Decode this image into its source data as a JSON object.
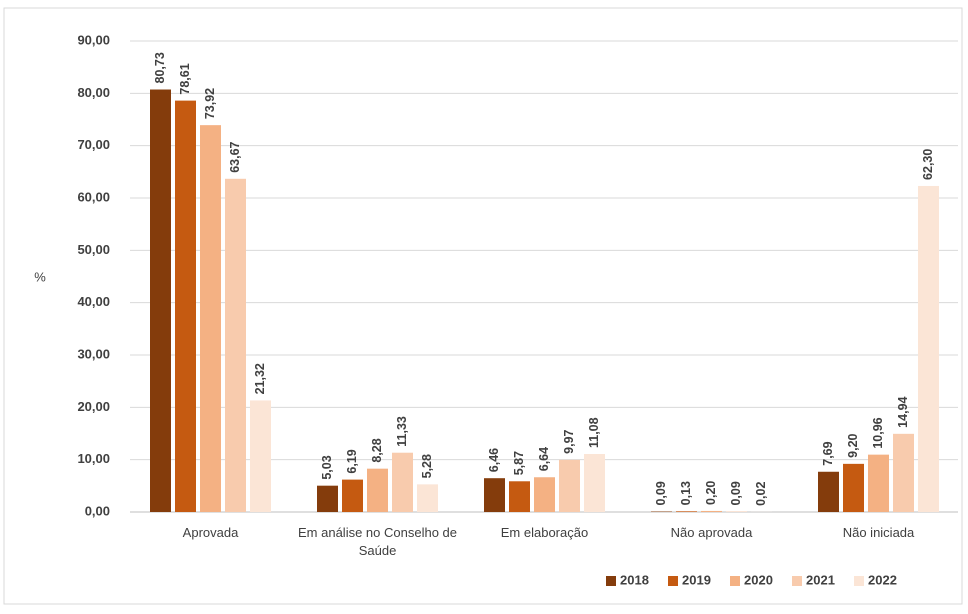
{
  "chart_data": {
    "type": "bar",
    "y_label": "%",
    "categories": [
      "Aprovada",
      "Em análise no Conselho de Saúde",
      "Em elaboração",
      "Não aprovada",
      "Não iniciada"
    ],
    "series": [
      {
        "name": "2018",
        "color": "#843c0c",
        "values": [
          80.73,
          5.03,
          6.46,
          0.09,
          7.69
        ],
        "value_labels": [
          "80,73",
          "5,03",
          "6,46",
          "0,09",
          "7,69"
        ]
      },
      {
        "name": "2019",
        "color": "#c55a11",
        "values": [
          78.61,
          6.19,
          5.87,
          0.13,
          9.2
        ],
        "value_labels": [
          "78,61",
          "6,19",
          "5,87",
          "0,13",
          "9,20"
        ]
      },
      {
        "name": "2020",
        "color": "#f4b183",
        "values": [
          73.92,
          8.28,
          6.64,
          0.2,
          10.96
        ],
        "value_labels": [
          "73,92",
          "8,28",
          "6,64",
          "0,20",
          "10,96"
        ]
      },
      {
        "name": "2021",
        "color": "#f8cbad",
        "values": [
          63.67,
          11.33,
          9.97,
          0.09,
          14.94
        ],
        "value_labels": [
          "63,67",
          "11,33",
          "9,97",
          "0,09",
          "14,94"
        ]
      },
      {
        "name": "2022",
        "color": "#fbe5d6",
        "values": [
          21.32,
          5.28,
          11.08,
          0.02,
          62.3
        ],
        "value_labels": [
          "21,32",
          "5,28",
          "11,08",
          "0,02",
          "62,30"
        ]
      }
    ],
    "ylim": [
      0,
      90
    ],
    "yticks": [
      {
        "value": 0,
        "label": "0,00"
      },
      {
        "value": 10,
        "label": "10,00"
      },
      {
        "value": 20,
        "label": "20,00"
      },
      {
        "value": 30,
        "label": "30,00"
      },
      {
        "value": 40,
        "label": "40,00"
      },
      {
        "value": 50,
        "label": "50,00"
      },
      {
        "value": 60,
        "label": "60,00"
      },
      {
        "value": 70,
        "label": "70,00"
      },
      {
        "value": 80,
        "label": "80,00"
      },
      {
        "value": 90,
        "label": "90,00"
      }
    ],
    "grid": true,
    "legend": "bottom-right"
  }
}
